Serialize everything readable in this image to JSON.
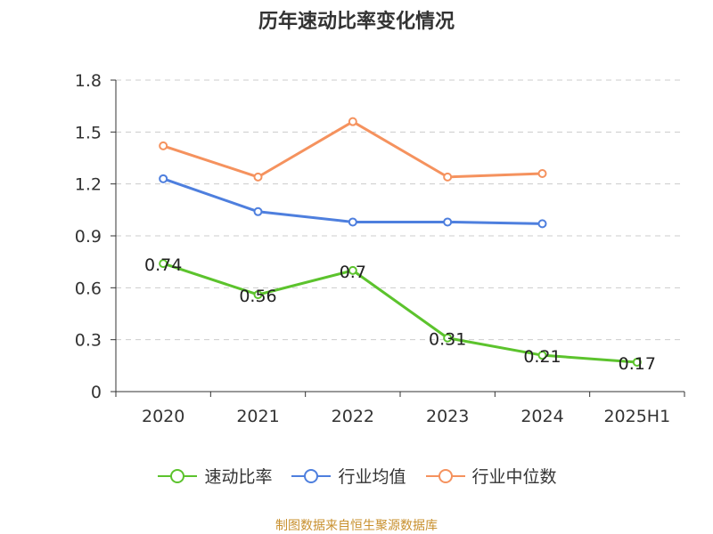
{
  "chart_data": {
    "type": "line",
    "title": "历年速动比率变化情况",
    "categories": [
      "2020",
      "2021",
      "2022",
      "2023",
      "2024",
      "2025H1"
    ],
    "y_ticks": [
      "0",
      "0.3",
      "0.6",
      "0.9",
      "1.2",
      "1.5",
      "1.8"
    ],
    "ylim": [
      0,
      1.8
    ],
    "grid": "horizontal dashed",
    "legend_position": "bottom",
    "series": [
      {
        "name": "速动比率",
        "color": "#5cc32d",
        "values": [
          0.74,
          0.56,
          0.7,
          0.31,
          0.21,
          0.17
        ],
        "labels": [
          "0.74",
          "0.56",
          "0.7",
          "0.31",
          "0.21",
          "0.17"
        ]
      },
      {
        "name": "行业均值",
        "color": "#4e7fde",
        "values": [
          1.23,
          1.04,
          0.98,
          0.98,
          0.97,
          null
        ]
      },
      {
        "name": "行业中位数",
        "color": "#f5925e",
        "values": [
          1.42,
          1.24,
          1.56,
          1.24,
          1.26,
          null
        ]
      }
    ]
  },
  "footer": {
    "source": "制图数据来自恒生聚源数据库"
  }
}
